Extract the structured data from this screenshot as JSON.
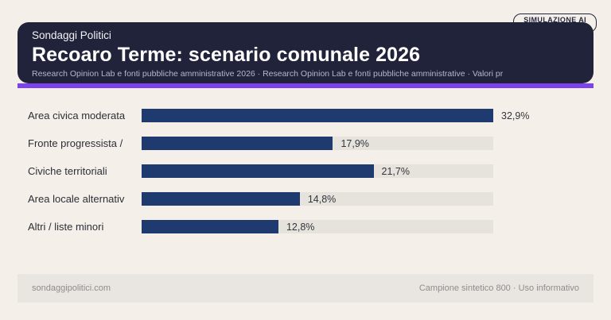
{
  "badge": {
    "label": "SIMULAZIONE AI"
  },
  "header": {
    "kicker": "Sondaggi Politici",
    "title": "Recoaro Terme: scenario comunale 2026",
    "subtitle": "Research Opinion Lab e fonti pubbliche amministrative 2026 · Research Opinion Lab e fonti pubbliche amministrative · Valori pr"
  },
  "chart_data": {
    "type": "bar",
    "orientation": "horizontal",
    "title": "Recoaro Terme: scenario comunale 2026",
    "categories": [
      "Area civica moderata",
      "Fronte progressista /",
      "Civiche territoriali",
      "Area locale alternativ",
      "Altri / liste minori"
    ],
    "values": [
      32.9,
      17.9,
      21.7,
      14.8,
      12.8
    ],
    "value_labels": [
      "32,9%",
      "17,9%",
      "21,7%",
      "14,8%",
      "12,8%"
    ],
    "xlim": [
      0,
      32.9
    ],
    "grid": false,
    "legend": false,
    "bar_color": "#1e3a6e",
    "track_color": "#e6e2dc"
  },
  "footer": {
    "left": "sondaggipolitici.com",
    "right": "Campione sintetico 800 · Uso informativo"
  },
  "colors": {
    "page_bg": "#f4efe8",
    "header_bg": "#20233a",
    "accent": "#7c42ec",
    "bar": "#1e3a6e",
    "track": "#e6e2dc",
    "footer_bg": "#e9e6e1"
  }
}
